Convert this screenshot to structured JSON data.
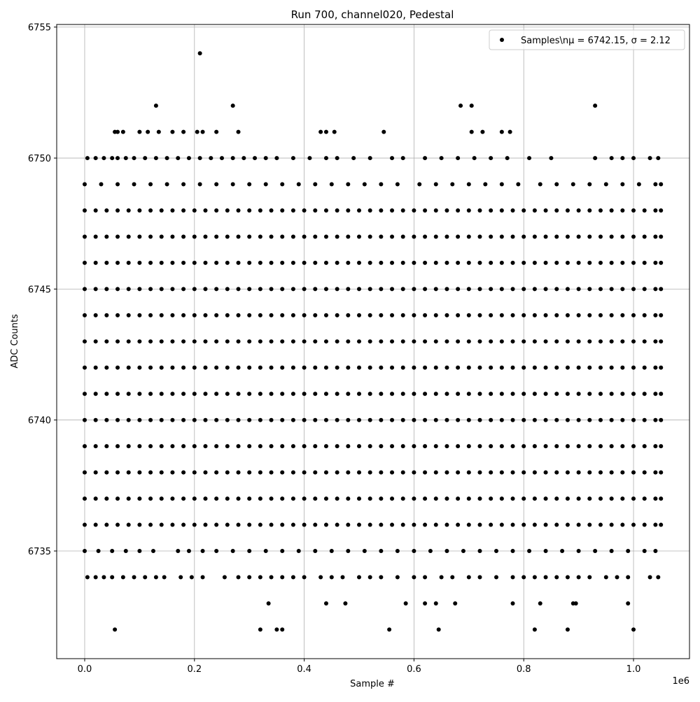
{
  "chart_data": {
    "type": "scatter",
    "title": "Run 700, channel020, Pedestal",
    "x_label": "Sample #",
    "y_label": "ADC Counts",
    "x_offset_label": "1e6",
    "series_name": "Samples\\nμ = 6742.15, σ = 2.12",
    "color": "#000000",
    "grid": true,
    "legend": "upper right",
    "xlim": [
      -0.051,
      1.102
    ],
    "ylim": [
      6730.89,
      6755.1
    ],
    "xticks": [
      {
        "value": 0,
        "label": "0.0"
      },
      0.2,
      0.4,
      0.6,
      0.8,
      {
        "value": 1,
        "label": "1.0"
      }
    ],
    "yticks": [
      6735,
      6740,
      6745,
      6750,
      6755
    ],
    "rows": [
      {
        "y": 6754,
        "x": [
          0.21
        ]
      },
      {
        "y": 6752,
        "x": [
          0.13,
          0.27,
          0.685,
          0.705,
          0.93
        ]
      },
      {
        "y": 6751,
        "x": [
          0.055,
          0.06,
          0.07,
          0.1,
          0.115,
          0.135,
          0.16,
          0.18,
          0.205,
          0.215,
          0.24,
          0.28,
          0.43,
          0.44,
          0.455,
          0.545,
          0.705,
          0.725,
          0.76,
          0.775
        ]
      },
      {
        "y": 6750,
        "x": [
          0.005,
          0.02,
          0.035,
          0.05,
          0.06,
          0.075,
          0.09,
          0.11,
          0.13,
          0.15,
          0.17,
          0.19,
          0.21,
          0.23,
          0.25,
          0.27,
          0.29,
          0.31,
          0.33,
          0.35,
          0.38,
          0.41,
          0.44,
          0.46,
          0.49,
          0.52,
          0.56,
          0.58,
          0.62,
          0.65,
          0.68,
          0.71,
          0.74,
          0.77,
          0.81,
          0.85,
          0.93,
          0.96,
          0.98,
          1.0,
          1.03,
          1.045
        ]
      },
      {
        "y": 6749,
        "x": [
          0,
          0.03,
          0.06,
          0.09,
          0.12,
          0.15,
          0.18,
          0.21,
          0.24,
          0.27,
          0.3,
          0.33,
          0.36,
          0.39,
          0.42,
          0.45,
          0.48,
          0.51,
          0.54,
          0.57,
          0.61,
          0.64,
          0.67,
          0.7,
          0.73,
          0.76,
          0.79,
          0.83,
          0.86,
          0.89,
          0.92,
          0.95,
          0.98,
          1.01,
          1.04,
          1.05
        ]
      },
      {
        "y": 6748,
        "x": [
          0,
          0.02,
          0.04,
          0.06,
          0.08,
          0.1,
          0.12,
          0.14,
          0.16,
          0.18,
          0.2,
          0.22,
          0.24,
          0.26,
          0.28,
          0.3,
          0.32,
          0.34,
          0.36,
          0.38,
          0.4,
          0.42,
          0.44,
          0.46,
          0.48,
          0.5,
          0.52,
          0.54,
          0.56,
          0.58,
          0.6,
          0.62,
          0.64,
          0.66,
          0.68,
          0.7,
          0.72,
          0.74,
          0.76,
          0.78,
          0.8,
          0.82,
          0.84,
          0.86,
          0.88,
          0.9,
          0.92,
          0.94,
          0.96,
          0.98,
          1,
          1.02,
          1.04,
          1.05
        ]
      },
      {
        "y": 6747,
        "x": [
          0,
          0.02,
          0.04,
          0.06,
          0.08,
          0.1,
          0.12,
          0.14,
          0.16,
          0.18,
          0.2,
          0.22,
          0.24,
          0.26,
          0.28,
          0.3,
          0.32,
          0.34,
          0.36,
          0.38,
          0.4,
          0.42,
          0.44,
          0.46,
          0.48,
          0.5,
          0.52,
          0.54,
          0.56,
          0.58,
          0.6,
          0.62,
          0.64,
          0.66,
          0.68,
          0.7,
          0.72,
          0.74,
          0.76,
          0.78,
          0.8,
          0.82,
          0.84,
          0.86,
          0.88,
          0.9,
          0.92,
          0.94,
          0.96,
          0.98,
          1,
          1.02,
          1.04,
          1.05
        ]
      },
      {
        "y": 6746,
        "x": [
          0,
          0.02,
          0.04,
          0.06,
          0.08,
          0.1,
          0.12,
          0.14,
          0.16,
          0.18,
          0.2,
          0.22,
          0.24,
          0.26,
          0.28,
          0.3,
          0.32,
          0.34,
          0.36,
          0.38,
          0.4,
          0.42,
          0.44,
          0.46,
          0.48,
          0.5,
          0.52,
          0.54,
          0.56,
          0.58,
          0.6,
          0.62,
          0.64,
          0.66,
          0.68,
          0.7,
          0.72,
          0.74,
          0.76,
          0.78,
          0.8,
          0.82,
          0.84,
          0.86,
          0.88,
          0.9,
          0.92,
          0.94,
          0.96,
          0.98,
          1,
          1.02,
          1.04,
          1.05
        ]
      },
      {
        "y": 6745,
        "x": [
          0,
          0.02,
          0.04,
          0.06,
          0.08,
          0.1,
          0.12,
          0.14,
          0.16,
          0.18,
          0.2,
          0.22,
          0.24,
          0.26,
          0.28,
          0.3,
          0.32,
          0.34,
          0.36,
          0.38,
          0.4,
          0.42,
          0.44,
          0.46,
          0.48,
          0.5,
          0.52,
          0.54,
          0.56,
          0.58,
          0.6,
          0.62,
          0.64,
          0.66,
          0.68,
          0.7,
          0.72,
          0.74,
          0.76,
          0.78,
          0.8,
          0.82,
          0.84,
          0.86,
          0.88,
          0.9,
          0.92,
          0.94,
          0.96,
          0.98,
          1,
          1.02,
          1.04,
          1.05
        ]
      },
      {
        "y": 6744,
        "x": [
          0,
          0.02,
          0.04,
          0.06,
          0.08,
          0.1,
          0.12,
          0.14,
          0.16,
          0.18,
          0.2,
          0.22,
          0.24,
          0.26,
          0.28,
          0.3,
          0.32,
          0.34,
          0.36,
          0.38,
          0.4,
          0.42,
          0.44,
          0.46,
          0.48,
          0.5,
          0.52,
          0.54,
          0.56,
          0.58,
          0.6,
          0.62,
          0.64,
          0.66,
          0.68,
          0.7,
          0.72,
          0.74,
          0.76,
          0.78,
          0.8,
          0.82,
          0.84,
          0.86,
          0.88,
          0.9,
          0.92,
          0.94,
          0.96,
          0.98,
          1,
          1.02,
          1.04,
          1.05
        ]
      },
      {
        "y": 6743,
        "x": [
          0,
          0.02,
          0.04,
          0.06,
          0.08,
          0.1,
          0.12,
          0.14,
          0.16,
          0.18,
          0.2,
          0.22,
          0.24,
          0.26,
          0.28,
          0.3,
          0.32,
          0.34,
          0.36,
          0.38,
          0.4,
          0.42,
          0.44,
          0.46,
          0.48,
          0.5,
          0.52,
          0.54,
          0.56,
          0.58,
          0.6,
          0.62,
          0.64,
          0.66,
          0.68,
          0.7,
          0.72,
          0.74,
          0.76,
          0.78,
          0.8,
          0.82,
          0.84,
          0.86,
          0.88,
          0.9,
          0.92,
          0.94,
          0.96,
          0.98,
          1,
          1.02,
          1.04,
          1.05
        ]
      },
      {
        "y": 6742,
        "x": [
          0,
          0.02,
          0.04,
          0.06,
          0.08,
          0.1,
          0.12,
          0.14,
          0.16,
          0.18,
          0.2,
          0.22,
          0.24,
          0.26,
          0.28,
          0.3,
          0.32,
          0.34,
          0.36,
          0.38,
          0.4,
          0.42,
          0.44,
          0.46,
          0.48,
          0.5,
          0.52,
          0.54,
          0.56,
          0.58,
          0.6,
          0.62,
          0.64,
          0.66,
          0.68,
          0.7,
          0.72,
          0.74,
          0.76,
          0.78,
          0.8,
          0.82,
          0.84,
          0.86,
          0.88,
          0.9,
          0.92,
          0.94,
          0.96,
          0.98,
          1,
          1.02,
          1.04,
          1.05
        ]
      },
      {
        "y": 6741,
        "x": [
          0,
          0.02,
          0.04,
          0.06,
          0.08,
          0.1,
          0.12,
          0.14,
          0.16,
          0.18,
          0.2,
          0.22,
          0.24,
          0.26,
          0.28,
          0.3,
          0.32,
          0.34,
          0.36,
          0.38,
          0.4,
          0.42,
          0.44,
          0.46,
          0.48,
          0.5,
          0.52,
          0.54,
          0.56,
          0.58,
          0.6,
          0.62,
          0.64,
          0.66,
          0.68,
          0.7,
          0.72,
          0.74,
          0.76,
          0.78,
          0.8,
          0.82,
          0.84,
          0.86,
          0.88,
          0.9,
          0.92,
          0.94,
          0.96,
          0.98,
          1,
          1.02,
          1.04,
          1.05
        ]
      },
      {
        "y": 6740,
        "x": [
          0,
          0.02,
          0.04,
          0.06,
          0.08,
          0.1,
          0.12,
          0.14,
          0.16,
          0.18,
          0.2,
          0.22,
          0.24,
          0.26,
          0.28,
          0.3,
          0.32,
          0.34,
          0.36,
          0.38,
          0.4,
          0.42,
          0.44,
          0.46,
          0.48,
          0.5,
          0.52,
          0.54,
          0.56,
          0.58,
          0.6,
          0.62,
          0.64,
          0.66,
          0.68,
          0.7,
          0.72,
          0.74,
          0.76,
          0.78,
          0.8,
          0.82,
          0.84,
          0.86,
          0.88,
          0.9,
          0.92,
          0.94,
          0.96,
          0.98,
          1,
          1.02,
          1.04,
          1.05
        ]
      },
      {
        "y": 6739,
        "x": [
          0,
          0.02,
          0.04,
          0.06,
          0.08,
          0.1,
          0.12,
          0.14,
          0.16,
          0.18,
          0.2,
          0.22,
          0.24,
          0.26,
          0.28,
          0.3,
          0.32,
          0.34,
          0.36,
          0.38,
          0.4,
          0.42,
          0.44,
          0.46,
          0.48,
          0.5,
          0.52,
          0.54,
          0.56,
          0.58,
          0.6,
          0.62,
          0.64,
          0.66,
          0.68,
          0.7,
          0.72,
          0.74,
          0.76,
          0.78,
          0.8,
          0.82,
          0.84,
          0.86,
          0.88,
          0.9,
          0.92,
          0.94,
          0.96,
          0.98,
          1,
          1.02,
          1.04,
          1.05
        ]
      },
      {
        "y": 6738,
        "x": [
          0,
          0.02,
          0.04,
          0.06,
          0.08,
          0.1,
          0.12,
          0.14,
          0.16,
          0.18,
          0.2,
          0.22,
          0.24,
          0.26,
          0.28,
          0.3,
          0.32,
          0.34,
          0.36,
          0.38,
          0.4,
          0.42,
          0.44,
          0.46,
          0.48,
          0.5,
          0.52,
          0.54,
          0.56,
          0.58,
          0.6,
          0.62,
          0.64,
          0.66,
          0.68,
          0.7,
          0.72,
          0.74,
          0.76,
          0.78,
          0.8,
          0.82,
          0.84,
          0.86,
          0.88,
          0.9,
          0.92,
          0.94,
          0.96,
          0.98,
          1,
          1.02,
          1.04,
          1.05
        ]
      },
      {
        "y": 6737,
        "x": [
          0,
          0.02,
          0.04,
          0.06,
          0.08,
          0.1,
          0.12,
          0.14,
          0.16,
          0.18,
          0.2,
          0.22,
          0.24,
          0.26,
          0.28,
          0.3,
          0.32,
          0.34,
          0.36,
          0.38,
          0.4,
          0.42,
          0.44,
          0.46,
          0.48,
          0.5,
          0.52,
          0.54,
          0.56,
          0.58,
          0.6,
          0.62,
          0.64,
          0.66,
          0.68,
          0.7,
          0.72,
          0.74,
          0.76,
          0.78,
          0.8,
          0.82,
          0.84,
          0.86,
          0.88,
          0.9,
          0.92,
          0.94,
          0.96,
          0.98,
          1,
          1.02,
          1.04,
          1.05
        ]
      },
      {
        "y": 6736,
        "x": [
          0,
          0.02,
          0.04,
          0.06,
          0.08,
          0.1,
          0.12,
          0.14,
          0.16,
          0.18,
          0.2,
          0.22,
          0.24,
          0.26,
          0.28,
          0.3,
          0.32,
          0.34,
          0.36,
          0.38,
          0.4,
          0.42,
          0.44,
          0.46,
          0.48,
          0.5,
          0.52,
          0.54,
          0.56,
          0.58,
          0.6,
          0.62,
          0.64,
          0.66,
          0.68,
          0.7,
          0.72,
          0.74,
          0.76,
          0.78,
          0.8,
          0.82,
          0.84,
          0.86,
          0.88,
          0.9,
          0.92,
          0.94,
          0.96,
          0.98,
          1,
          1.02,
          1.04,
          1.05
        ]
      },
      {
        "y": 6735,
        "x": [
          0,
          0.025,
          0.05,
          0.075,
          0.1,
          0.125,
          0.17,
          0.19,
          0.215,
          0.24,
          0.27,
          0.3,
          0.33,
          0.36,
          0.39,
          0.42,
          0.45,
          0.48,
          0.51,
          0.54,
          0.57,
          0.6,
          0.63,
          0.66,
          0.69,
          0.72,
          0.75,
          0.78,
          0.81,
          0.84,
          0.87,
          0.9,
          0.93,
          0.96,
          0.99,
          1.02,
          1.04
        ]
      },
      {
        "y": 6734,
        "x": [
          0.005,
          0.02,
          0.035,
          0.05,
          0.07,
          0.09,
          0.11,
          0.13,
          0.145,
          0.175,
          0.195,
          0.215,
          0.255,
          0.28,
          0.3,
          0.32,
          0.34,
          0.36,
          0.38,
          0.4,
          0.43,
          0.45,
          0.47,
          0.5,
          0.52,
          0.54,
          0.57,
          0.6,
          0.62,
          0.65,
          0.67,
          0.7,
          0.72,
          0.75,
          0.78,
          0.8,
          0.82,
          0.84,
          0.86,
          0.88,
          0.9,
          0.92,
          0.95,
          0.97,
          0.99,
          1.03,
          1.045
        ]
      },
      {
        "y": 6733,
        "x": [
          0.335,
          0.44,
          0.475,
          0.585,
          0.62,
          0.64,
          0.675,
          0.78,
          0.83,
          0.89,
          0.895,
          0.99
        ]
      },
      {
        "y": 6732,
        "x": [
          0.055,
          0.32,
          0.35,
          0.36,
          0.555,
          0.645,
          0.82,
          0.88,
          1.0
        ]
      }
    ]
  }
}
